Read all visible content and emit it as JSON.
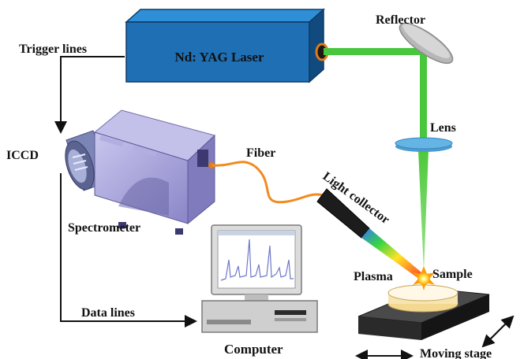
{
  "labels": {
    "laser": "Nd: YAG Laser",
    "reflector": "Reflector",
    "lens": "Lens",
    "trigger_lines": "Trigger lines",
    "iccd": "ICCD",
    "fiber": "Fiber",
    "light_collector": "Light collector",
    "spectrometer": "Spectrometer",
    "plasma": "Plasma",
    "sample": "Sample",
    "data_lines": "Data lines",
    "computer": "Computer",
    "moving_stage": "Moving stage"
  },
  "colors": {
    "laser_body": "#1f6fb4",
    "laser_top": "#2e8fd6",
    "laser_side": "#114a7e",
    "beam": "#48c73c",
    "fiber": "#f28a1e",
    "lens": "#64b4e4",
    "reflector": "#b7b7b7",
    "stage": "#2a2a2a",
    "sample": "#f7e4b3",
    "spectrometer": "#9f9bd6",
    "plasma": "#ffd11a"
  },
  "icons": {
    "laser": "laser-box-icon",
    "reflector": "mirror-icon",
    "lens": "lens-icon",
    "spectrometer": "spectrometer-icon",
    "camera": "iccd-camera-icon",
    "collector": "light-collector-icon",
    "computer": "computer-icon",
    "stage": "moving-stage-icon",
    "plasma": "plasma-burst-icon"
  }
}
